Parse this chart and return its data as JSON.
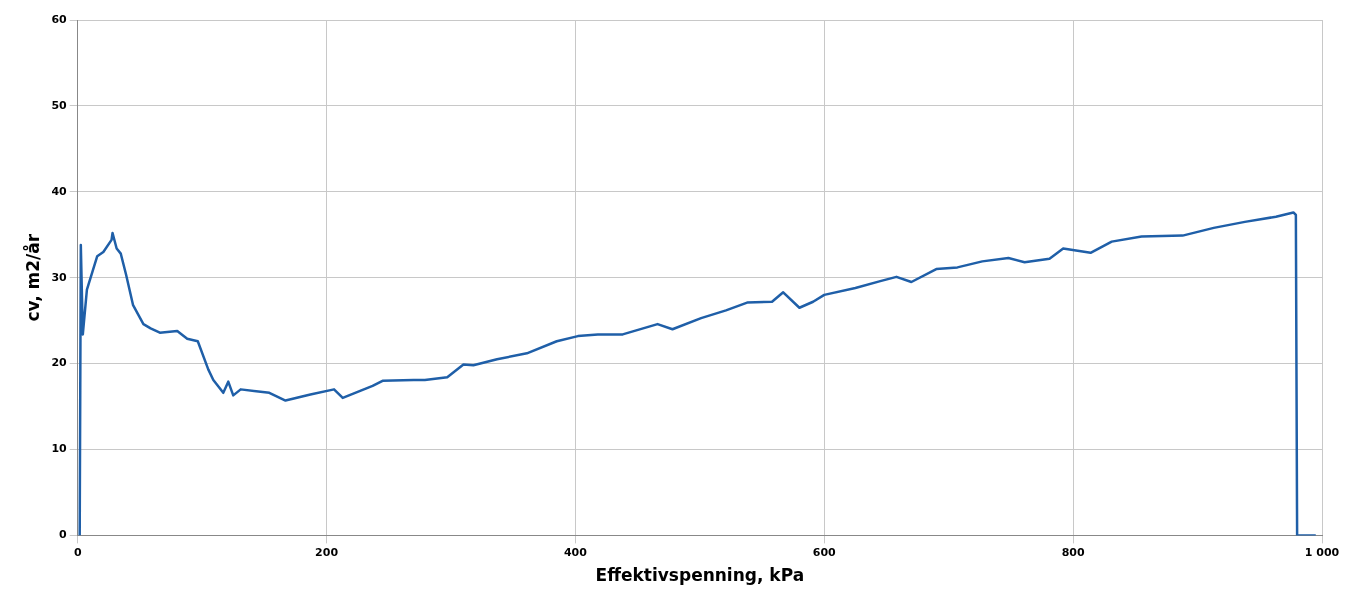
{
  "chart_data": {
    "type": "line",
    "xlabel": "Effektivspenning, kPa",
    "ylabel": "cv, m2/år",
    "xlim": [
      0,
      1000
    ],
    "xticks": [
      0,
      200,
      400,
      600,
      800,
      {
        "value": 1000,
        "label": "1 000"
      }
    ],
    "ylim": [
      0,
      60
    ],
    "yticks": [
      0,
      10,
      20,
      30,
      40,
      50,
      60
    ],
    "grid": true,
    "marker": "none",
    "line_style": "solid",
    "series": [
      {
        "color": "#1f5fa8",
        "x": [
          1.6,
          2.5,
          4.1,
          7.4,
          15.7,
          20.6,
          27.2,
          28,
          31.3,
          34.6,
          38.8,
          44.5,
          52.8,
          58.6,
          66,
          80,
          88,
          96.5,
          105,
          109,
          117,
          121,
          125,
          131,
          154,
          167,
          187,
          206,
          213,
          237,
          245,
          270,
          279,
          297,
          310,
          318,
          337,
          361,
          385,
          402,
          418,
          438,
          466,
          478,
          501,
          521,
          538,
          558,
          567,
          580,
          591,
          600,
          625,
          645,
          658,
          670,
          690,
          707,
          727,
          748,
          761,
          781,
          792,
          814,
          831,
          855,
          888,
          913,
          938,
          963,
          977,
          979,
          980,
          995
        ],
        "values": [
          0,
          33.8,
          23.4,
          28.6,
          32.5,
          33,
          34.4,
          35.2,
          33.4,
          32.8,
          30.4,
          26.8,
          24.6,
          24.1,
          23.6,
          23.8,
          22.9,
          22.6,
          19.3,
          18.1,
          16.6,
          17.9,
          16.3,
          17,
          16.6,
          15.7,
          16.4,
          17,
          16,
          17.4,
          18,
          18.1,
          18.1,
          18.4,
          19.9,
          19.8,
          20.5,
          21.2,
          22.6,
          23.2,
          23.4,
          23.4,
          24.6,
          24,
          25.3,
          26.2,
          27.1,
          27.2,
          28.3,
          26.5,
          27.2,
          28,
          28.8,
          29.6,
          30.1,
          29.5,
          31,
          31.2,
          31.9,
          32.3,
          31.8,
          32.2,
          33.4,
          32.9,
          34.2,
          34.8,
          34.9,
          35.8,
          36.5,
          37.1,
          37.6,
          37.3,
          0,
          0
        ]
      }
    ]
  }
}
